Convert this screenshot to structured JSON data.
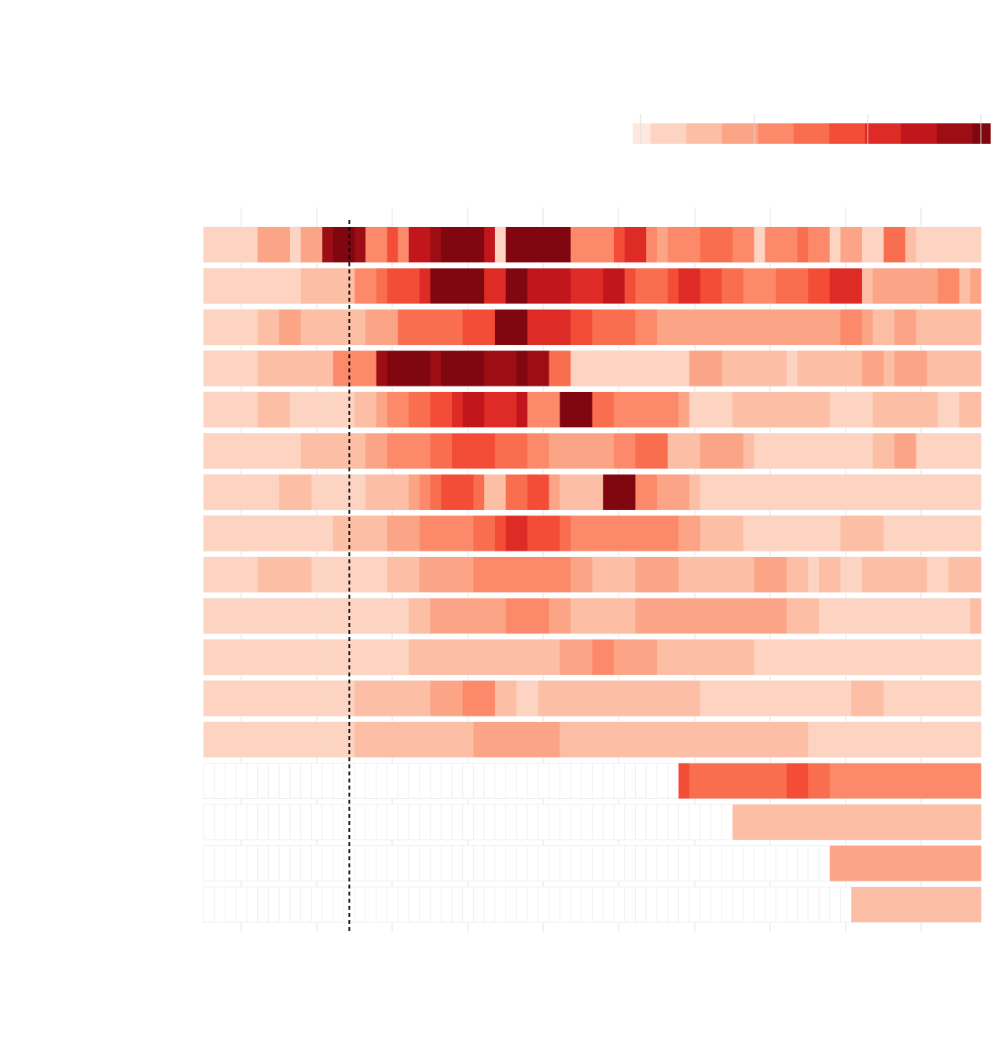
{
  "chart_data": {
    "type": "heatmap",
    "title": "",
    "xlabel": "",
    "ylabel": "",
    "columns_per_row": 72,
    "legend": {
      "position": "top-right",
      "color_stops": [
        "#fee8de",
        "#fdd4c2",
        "#fcbea5",
        "#fca486",
        "#fc8a6a",
        "#f96e4e",
        "#f34c37",
        "#de2b25",
        "#c1161b",
        "#9d0d14",
        "#800610"
      ]
    },
    "marker": {
      "style": "dashed",
      "color": "#000000",
      "column": 13.5
    },
    "rows": [
      {
        "start": 0,
        "values": [
          1,
          1,
          1,
          1,
          1,
          3,
          3,
          3,
          1,
          3,
          3,
          9,
          10,
          10,
          9,
          4,
          4,
          6,
          4,
          8,
          8,
          9,
          10,
          10,
          10,
          10,
          8,
          1,
          10,
          10,
          10,
          10,
          10,
          10,
          4,
          4,
          4,
          4,
          6,
          7,
          7,
          4,
          3,
          4,
          4,
          4,
          5,
          5,
          5,
          4,
          4,
          1,
          4,
          4,
          4,
          5,
          4,
          4,
          1,
          3,
          3,
          1,
          1,
          5,
          5,
          2,
          1,
          1,
          1,
          1,
          1,
          1
        ]
      },
      {
        "start": 0,
        "values": [
          1,
          1,
          1,
          1,
          1,
          1,
          1,
          1,
          1,
          2,
          2,
          2,
          2,
          2,
          4,
          4,
          5,
          6,
          6,
          6,
          7,
          10,
          10,
          10,
          10,
          10,
          7,
          7,
          10,
          10,
          8,
          8,
          8,
          8,
          7,
          7,
          7,
          8,
          8,
          6,
          5,
          5,
          5,
          6,
          7,
          7,
          6,
          6,
          5,
          5,
          4,
          4,
          4,
          5,
          5,
          5,
          6,
          6,
          7,
          7,
          7,
          2,
          3,
          3,
          3,
          3,
          3,
          3,
          4,
          4,
          2,
          3
        ]
      },
      {
        "start": 0,
        "values": [
          1,
          1,
          1,
          1,
          1,
          2,
          2,
          3,
          3,
          2,
          2,
          2,
          2,
          2,
          2,
          3,
          3,
          3,
          5,
          5,
          5,
          5,
          5,
          5,
          6,
          6,
          6,
          10,
          10,
          10,
          7,
          7,
          7,
          7,
          6,
          6,
          5,
          5,
          5,
          5,
          4,
          4,
          3,
          3,
          3,
          3,
          3,
          3,
          3,
          3,
          3,
          3,
          3,
          3,
          3,
          3,
          3,
          3,
          3,
          4,
          4,
          3,
          2,
          2,
          3,
          3,
          2,
          2,
          2,
          2,
          2,
          2
        ]
      },
      {
        "start": 0,
        "values": [
          1,
          1,
          1,
          1,
          1,
          2,
          2,
          2,
          2,
          2,
          2,
          2,
          4,
          4,
          4,
          4,
          9,
          10,
          10,
          10,
          10,
          9,
          10,
          10,
          10,
          10,
          9,
          9,
          9,
          10,
          9,
          9,
          5,
          5,
          1,
          1,
          1,
          1,
          1,
          1,
          1,
          1,
          1,
          1,
          1,
          3,
          3,
          3,
          2,
          2,
          2,
          2,
          2,
          2,
          1,
          2,
          2,
          2,
          2,
          2,
          2,
          3,
          3,
          2,
          3,
          3,
          3,
          2,
          2,
          2,
          2,
          2
        ]
      },
      {
        "start": 0,
        "values": [
          1,
          1,
          1,
          1,
          1,
          2,
          2,
          2,
          1,
          1,
          1,
          1,
          1,
          1,
          2,
          2,
          3,
          4,
          4,
          5,
          5,
          6,
          6,
          7,
          8,
          8,
          7,
          7,
          7,
          8,
          4,
          4,
          4,
          10,
          10,
          10,
          5,
          5,
          4,
          4,
          4,
          4,
          4,
          4,
          3,
          1,
          1,
          1,
          1,
          2,
          2,
          2,
          2,
          2,
          2,
          2,
          2,
          2,
          1,
          1,
          1,
          1,
          2,
          2,
          2,
          2,
          2,
          2,
          1,
          1,
          2,
          2
        ]
      },
      {
        "start": 0,
        "values": [
          1,
          1,
          1,
          1,
          1,
          1,
          1,
          1,
          1,
          2,
          2,
          2,
          2,
          2,
          2,
          3,
          3,
          4,
          4,
          4,
          4,
          5,
          5,
          6,
          6,
          6,
          6,
          5,
          5,
          5,
          4,
          4,
          3,
          3,
          3,
          3,
          3,
          3,
          4,
          4,
          5,
          5,
          5,
          2,
          2,
          2,
          3,
          3,
          3,
          3,
          2,
          1,
          1,
          1,
          1,
          1,
          1,
          1,
          1,
          1,
          1,
          1,
          2,
          2,
          3,
          3,
          1,
          1,
          1,
          1,
          1,
          1
        ]
      },
      {
        "start": 0,
        "values": [
          1,
          1,
          1,
          1,
          1,
          1,
          1,
          2,
          2,
          2,
          1,
          1,
          1,
          1,
          1,
          2,
          2,
          2,
          2,
          3,
          4,
          5,
          6,
          6,
          6,
          5,
          2,
          2,
          5,
          5,
          6,
          6,
          3,
          2,
          2,
          2,
          2,
          10,
          10,
          10,
          4,
          4,
          3,
          3,
          3,
          2,
          1,
          1,
          1,
          1,
          1,
          1,
          1,
          1,
          1,
          1,
          1,
          1,
          1,
          1,
          1,
          1,
          1,
          1,
          1,
          1,
          1,
          1,
          1,
          1,
          1,
          1
        ]
      },
      {
        "start": 0,
        "values": [
          1,
          1,
          1,
          1,
          1,
          1,
          1,
          1,
          1,
          1,
          1,
          1,
          2,
          2,
          2,
          2,
          2,
          3,
          3,
          3,
          4,
          4,
          4,
          4,
          4,
          5,
          5,
          6,
          7,
          7,
          6,
          6,
          6,
          5,
          4,
          4,
          4,
          4,
          4,
          4,
          4,
          4,
          4,
          4,
          3,
          3,
          2,
          2,
          2,
          2,
          1,
          1,
          1,
          1,
          1,
          1,
          1,
          1,
          1,
          2,
          2,
          2,
          2,
          1,
          1,
          1,
          1,
          1,
          1,
          1,
          1,
          1
        ]
      },
      {
        "start": 0,
        "values": [
          1,
          1,
          1,
          1,
          1,
          2,
          2,
          2,
          2,
          2,
          1,
          1,
          1,
          1,
          1,
          1,
          1,
          2,
          2,
          2,
          3,
          3,
          3,
          3,
          3,
          4,
          4,
          4,
          4,
          4,
          4,
          4,
          4,
          4,
          3,
          3,
          2,
          2,
          2,
          2,
          3,
          3,
          3,
          3,
          2,
          2,
          2,
          2,
          2,
          2,
          2,
          3,
          3,
          3,
          2,
          2,
          1,
          2,
          2,
          1,
          1,
          2,
          2,
          2,
          2,
          2,
          2,
          1,
          1,
          2,
          2,
          2
        ]
      },
      {
        "start": 0,
        "values": [
          1,
          1,
          1,
          1,
          1,
          1,
          1,
          1,
          1,
          1,
          1,
          1,
          1,
          1,
          1,
          1,
          1,
          1,
          1,
          2,
          2,
          3,
          3,
          3,
          3,
          3,
          3,
          3,
          4,
          4,
          4,
          4,
          3,
          3,
          2,
          2,
          2,
          2,
          2,
          2,
          3,
          3,
          3,
          3,
          3,
          3,
          3,
          3,
          3,
          3,
          3,
          3,
          3,
          3,
          2,
          2,
          2,
          1,
          1,
          1,
          1,
          1,
          1,
          1,
          1,
          1,
          1,
          1,
          1,
          1,
          1,
          2
        ]
      },
      {
        "start": 0,
        "values": [
          1,
          1,
          1,
          1,
          1,
          1,
          1,
          1,
          1,
          1,
          1,
          1,
          1,
          1,
          1,
          1,
          1,
          1,
          1,
          2,
          2,
          2,
          2,
          2,
          2,
          2,
          2,
          2,
          2,
          2,
          2,
          2,
          2,
          3,
          3,
          3,
          4,
          4,
          3,
          3,
          3,
          3,
          2,
          2,
          2,
          2,
          2,
          2,
          2,
          2,
          2,
          1,
          1,
          1,
          1,
          1,
          1,
          1,
          1,
          1,
          1,
          1,
          1,
          1,
          1,
          1,
          1,
          1,
          1,
          1,
          1,
          1
        ]
      },
      {
        "start": 0,
        "values": [
          1,
          1,
          1,
          1,
          1,
          1,
          1,
          1,
          1,
          1,
          1,
          1,
          1,
          1,
          2,
          2,
          2,
          2,
          2,
          2,
          2,
          3,
          3,
          3,
          4,
          4,
          4,
          2,
          2,
          1,
          1,
          2,
          2,
          2,
          2,
          2,
          2,
          2,
          2,
          2,
          2,
          2,
          2,
          2,
          2,
          2,
          1,
          1,
          1,
          1,
          1,
          1,
          1,
          1,
          1,
          1,
          1,
          1,
          1,
          1,
          2,
          2,
          2,
          1,
          1,
          1,
          1,
          1,
          1,
          1,
          1,
          1
        ]
      },
      {
        "start": 0,
        "values": [
          1,
          1,
          1,
          1,
          1,
          1,
          1,
          1,
          1,
          1,
          1,
          1,
          1,
          1,
          2,
          2,
          2,
          2,
          2,
          2,
          2,
          2,
          2,
          2,
          2,
          3,
          3,
          3,
          3,
          3,
          3,
          3,
          3,
          2,
          2,
          2,
          2,
          2,
          2,
          2,
          2,
          2,
          2,
          2,
          2,
          2,
          2,
          2,
          2,
          2,
          2,
          2,
          2,
          2,
          2,
          2,
          1,
          1,
          1,
          1,
          1,
          1,
          1,
          1,
          1,
          1,
          1,
          1,
          1,
          1,
          1,
          1
        ]
      },
      {
        "start": 44,
        "values": [
          6,
          5,
          5,
          5,
          5,
          5,
          5,
          5,
          5,
          5,
          6,
          6,
          5,
          5,
          4,
          4,
          4,
          4,
          4,
          4,
          4,
          4,
          4,
          4,
          4,
          4,
          4,
          4
        ]
      },
      {
        "start": 49,
        "values": [
          2,
          2,
          2,
          2,
          2,
          2,
          2,
          2,
          2,
          2,
          2,
          2,
          2,
          2,
          2,
          2,
          2,
          2,
          2,
          2,
          2,
          2,
          2
        ]
      },
      {
        "start": 58,
        "values": [
          3,
          3,
          3,
          3,
          3,
          3,
          3,
          3,
          3,
          3,
          3,
          3,
          3,
          3
        ]
      },
      {
        "start": 60,
        "values": [
          2,
          2,
          2,
          2,
          2,
          2,
          2,
          2,
          2,
          2,
          2,
          2
        ]
      }
    ]
  }
}
